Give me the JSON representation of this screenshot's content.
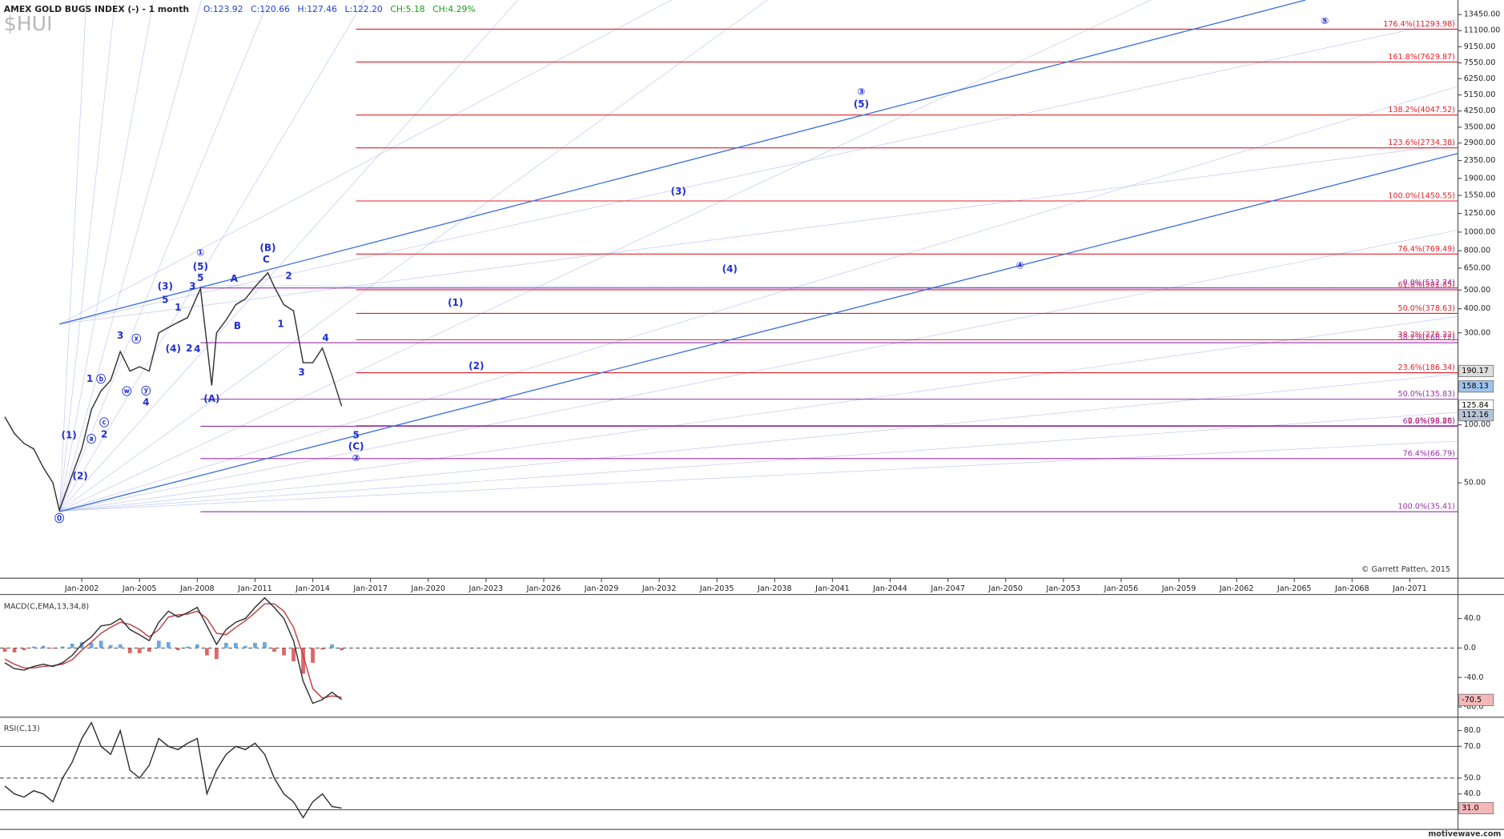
{
  "chart_data": [
    {
      "type": "line",
      "title": "AMEX GOLD BUGS INDEX (-) - 1 month",
      "symbol": "$HUI",
      "stats": [
        {
          "text": "O:123.92",
          "color": "#2040d0"
        },
        {
          "text": "C:120.66",
          "color": "#2040d0"
        },
        {
          "text": "H:127.46",
          "color": "#2040d0"
        },
        {
          "text": "L:122.20",
          "color": "#2040d0"
        },
        {
          "text": "CH:5.18",
          "color": "#18a018"
        },
        {
          "text": "CH:4.29%",
          "color": "#18a018"
        }
      ],
      "log_scale": true,
      "xlim": [
        "1997-10",
        "2073-07"
      ],
      "ylim": [
        16,
        16000
      ],
      "xticks": [
        {
          "value": "2002-01",
          "label": "Jan-2002"
        },
        {
          "value": "2005-01",
          "label": "Jan-2005"
        },
        {
          "value": "2008-01",
          "label": "Jan-2008"
        },
        {
          "value": "2011-01",
          "label": "Jan-2011"
        },
        {
          "value": "2014-01",
          "label": "Jan-2014"
        },
        {
          "value": "2017-01",
          "label": "Jan-2017"
        },
        {
          "value": "2020-01",
          "label": "Jan-2020"
        },
        {
          "value": "2023-01",
          "label": "Jan-2023"
        },
        {
          "value": "2026-01",
          "label": "Jan-2026"
        },
        {
          "value": "2029-01",
          "label": "Jan-2029"
        },
        {
          "value": "2032-01",
          "label": "Jan-2032"
        },
        {
          "value": "2035-01",
          "label": "Jan-2035"
        },
        {
          "value": "2038-01",
          "label": "Jan-2038"
        },
        {
          "value": "2041-01",
          "label": "Jan-2041"
        },
        {
          "value": "2044-01",
          "label": "Jan-2044"
        },
        {
          "value": "2047-01",
          "label": "Jan-2047"
        },
        {
          "value": "2050-01",
          "label": "Jan-2050"
        },
        {
          "value": "2053-01",
          "label": "Jan-2053"
        },
        {
          "value": "2056-01",
          "label": "Jan-2056"
        },
        {
          "value": "2059-01",
          "label": "Jan-2059"
        },
        {
          "value": "2062-01",
          "label": "Jan-2062"
        },
        {
          "value": "2065-01",
          "label": "Jan-2065"
        },
        {
          "value": "2068-01",
          "label": "Jan-2068"
        },
        {
          "value": "2071-01",
          "label": "Jan-2071"
        }
      ],
      "yticks": [
        {
          "value": 13450,
          "label": "13450.00"
        },
        {
          "value": 11100,
          "label": "11100.00"
        },
        {
          "value": 9150,
          "label": "9150.00"
        },
        {
          "value": 7550,
          "label": "7550.00"
        },
        {
          "value": 6250,
          "label": "6250.00"
        },
        {
          "value": 5150,
          "label": "5150.00"
        },
        {
          "value": 4250,
          "label": "4250.00"
        },
        {
          "value": 3500,
          "label": "3500.00"
        },
        {
          "value": 2900,
          "label": "2900.00"
        },
        {
          "value": 2350,
          "label": "2350.00"
        },
        {
          "value": 1900,
          "label": "1900.00"
        },
        {
          "value": 1550,
          "label": "1550.00"
        },
        {
          "value": 1250,
          "label": "1250.00"
        },
        {
          "value": 1000,
          "label": "1000.00"
        },
        {
          "value": 800,
          "label": "800.00"
        },
        {
          "value": 650,
          "label": "650.00"
        },
        {
          "value": 500,
          "label": "500.00"
        },
        {
          "value": 400,
          "label": "400.00"
        },
        {
          "value": 300,
          "label": "300.00"
        },
        {
          "value": 100,
          "label": "100.00"
        },
        {
          "value": 50,
          "label": "50.00"
        }
      ],
      "x": [
        "1998-01",
        "1998-07",
        "1999-01",
        "1999-07",
        "2000-01",
        "2000-07",
        "2000-11",
        "2001-07",
        "2002-01",
        "2002-07",
        "2003-01",
        "2003-07",
        "2004-01",
        "2004-07",
        "2005-01",
        "2005-07",
        "2006-01",
        "2006-07",
        "2007-01",
        "2007-07",
        "2008-03",
        "2008-10",
        "2009-01",
        "2009-07",
        "2010-01",
        "2010-07",
        "2011-01",
        "2011-09",
        "2012-01",
        "2012-07",
        "2013-01",
        "2013-07",
        "2014-01",
        "2014-07",
        "2015-01",
        "2015-07"
      ],
      "series": [
        {
          "color": "#333333",
          "values": [
            110,
            90,
            80,
            75,
            60,
            50,
            36,
            55,
            75,
            120,
            150,
            170,
            240,
            190,
            200,
            190,
            300,
            320,
            340,
            360,
            510,
            160,
            300,
            350,
            420,
            450,
            520,
            615,
            520,
            420,
            390,
            210,
            210,
            250,
            180,
            125
          ]
        }
      ],
      "markers": [
        {
          "value": 190.17,
          "fill": "#dddddd",
          "text_color": "#000000"
        },
        {
          "value": 158.13,
          "fill": "#9fc3ec",
          "text_color": "#000000"
        },
        {
          "value": 125.84,
          "fill": "#ffffff",
          "text_color": "#000000"
        },
        {
          "value": 112.16,
          "fill": "#b8c4d8",
          "text_color": "#000000"
        }
      ],
      "fib_levels": [
        {
          "label": "176.4%(11293.98)",
          "value": 11293.98,
          "start": "2016-04",
          "color": "#e0202a"
        },
        {
          "label": "161.8%(7629.87)",
          "value": 7629.87,
          "start": "2016-04",
          "color": "#e0202a"
        },
        {
          "label": "138.2%(4047.52)",
          "value": 4047.52,
          "start": "2016-04",
          "color": "#e0202a"
        },
        {
          "label": "123.6%(2734.38)",
          "value": 2734.38,
          "start": "2016-04",
          "color": "#e0202a"
        },
        {
          "label": "100.0%(1450.55)",
          "value": 1450.55,
          "start": "2016-04",
          "color": "#e0202a"
        },
        {
          "label": "76.4%(769.49)",
          "value": 769.49,
          "start": "2016-04",
          "color": "#e0202a"
        },
        {
          "label": "61.8%(501.85)",
          "value": 501.85,
          "start": "2016-04",
          "color": "#e0202a"
        },
        {
          "label": "50.0%(378.63)",
          "value": 378.63,
          "start": "2016-04",
          "color": "#e0202a"
        },
        {
          "label": "38.2%(276.22)",
          "value": 276.22,
          "start": "2016-04",
          "color": "#e0202a"
        },
        {
          "label": "23.6%(186.34)",
          "value": 186.34,
          "start": "2016-04",
          "color": "#e0202a"
        },
        {
          "label": "0.0%(98.88)",
          "value": 98.88,
          "start": "2016-04",
          "color": "#e0202a"
        },
        {
          "label": "0.0%(512.74)",
          "value": 512.74,
          "start": "2008-03",
          "color": "#9a2fa8"
        },
        {
          "label": "38.2%(266.72)",
          "value": 266.72,
          "start": "2008-03",
          "color": "#9a2fa8"
        },
        {
          "label": "50.0%(135.83)",
          "value": 135.83,
          "start": "2008-03",
          "color": "#9a2fa8"
        },
        {
          "label": "61.8%(98.26)",
          "value": 98.26,
          "start": "2008-03",
          "color": "#9a2fa8"
        },
        {
          "label": "76.4%(66.79)",
          "value": 66.79,
          "start": "2008-03",
          "color": "#9a2fa8"
        },
        {
          "label": "100.0%(35.41)",
          "value": 35.41,
          "start": "2008-03",
          "color": "#9a2fa8"
        }
      ],
      "trendlines": [
        {
          "x": [
            "2000-11",
            "2065-08"
          ],
          "values": [
            333,
            16000
          ],
          "color": "#3a6ee0"
        },
        {
          "x": [
            "2000-11",
            "2073-07"
          ],
          "values": [
            35.41,
            2560
          ],
          "color": "#3a6ee0"
        }
      ],
      "annotations": [
        {
          "text": "⓪",
          "x": "2000-11",
          "y": 32.5
        },
        {
          "text": "(1)",
          "x": "2001-05",
          "y": 88
        },
        {
          "text": "(2)",
          "x": "2001-12",
          "y": 53.9
        },
        {
          "text": "ⓐ",
          "x": "2002-07",
          "y": 84
        },
        {
          "text": "1",
          "x": "2002-06",
          "y": 173
        },
        {
          "text": "ⓑ",
          "x": "2003-01",
          "y": 172
        },
        {
          "text": "ⓒ",
          "x": "2003-03",
          "y": 102
        },
        {
          "text": "2",
          "x": "2003-03",
          "y": 89
        },
        {
          "text": "3",
          "x": "2004-01",
          "y": 290
        },
        {
          "text": "ⓦ",
          "x": "2004-05",
          "y": 148
        },
        {
          "text": "ⓧ",
          "x": "2004-11",
          "y": 277
        },
        {
          "text": "ⓨ",
          "x": "2005-05",
          "y": 149
        },
        {
          "text": "4",
          "x": "2005-05",
          "y": 130
        },
        {
          "text": "5",
          "x": "2006-05",
          "y": 443
        },
        {
          "text": "(3)",
          "x": "2006-05",
          "y": 520
        },
        {
          "text": "1",
          "x": "2007-01",
          "y": 404
        },
        {
          "text": "(4)",
          "x": "2006-10",
          "y": 247
        },
        {
          "text": "2",
          "x": "2007-08",
          "y": 248
        },
        {
          "text": "3",
          "x": "2007-10",
          "y": 520
        },
        {
          "text": "4",
          "x": "2008-01",
          "y": 246
        },
        {
          "text": "①",
          "x": "2008-03",
          "y": 779
        },
        {
          "text": "(5)",
          "x": "2008-03",
          "y": 660
        },
        {
          "text": "5",
          "x": "2008-03",
          "y": 577
        },
        {
          "text": "(A)",
          "x": "2008-10",
          "y": 136
        },
        {
          "text": "A",
          "x": "2009-12",
          "y": 570
        },
        {
          "text": "B",
          "x": "2010-02",
          "y": 325
        },
        {
          "text": "(B)",
          "x": "2011-09",
          "y": 825
        },
        {
          "text": "C",
          "x": "2011-08",
          "y": 718
        },
        {
          "text": "2",
          "x": "2012-10",
          "y": 590
        },
        {
          "text": "1",
          "x": "2012-05",
          "y": 333
        },
        {
          "text": "4",
          "x": "2014-09",
          "y": 281
        },
        {
          "text": "3",
          "x": "2013-06",
          "y": 186
        },
        {
          "text": "5",
          "x": "2016-04",
          "y": 88
        },
        {
          "text": "(C)",
          "x": "2016-04",
          "y": 77
        },
        {
          "text": "②",
          "x": "2016-04",
          "y": 67
        },
        {
          "text": "(1)",
          "x": "2021-06",
          "y": 429
        },
        {
          "text": "(2)",
          "x": "2022-07",
          "y": 201
        },
        {
          "text": "(3)",
          "x": "2033-01",
          "y": 1620
        },
        {
          "text": "(4)",
          "x": "2035-09",
          "y": 640
        },
        {
          "text": "③",
          "x": "2042-07",
          "y": 5330
        },
        {
          "text": "(5)",
          "x": "2042-07",
          "y": 4600
        },
        {
          "text": "④",
          "x": "2050-10",
          "y": 669
        },
        {
          "text": "⑤",
          "x": "2066-08",
          "y": 12400
        }
      ],
      "annotation_color": "#1f2fd0",
      "credit": "© Garrett Patten, 2015"
    },
    {
      "type": "line",
      "title": "MACD(C,EMA,13,34,8)",
      "xlim": [
        "1997-10",
        "2073-07"
      ],
      "ylim": [
        -90,
        70
      ],
      "yticks": [
        {
          "value": 40,
          "label": "40.0"
        },
        {
          "value": 0,
          "label": "0.0"
        },
        {
          "value": -40,
          "label": "-40.0"
        },
        {
          "value": -80,
          "label": "-80.0"
        }
      ],
      "levels": [
        {
          "value": 0,
          "style": "dashed"
        }
      ],
      "x": [
        "1998-01",
        "1998-07",
        "1999-01",
        "1999-07",
        "2000-01",
        "2000-07",
        "2001-01",
        "2001-07",
        "2002-01",
        "2002-07",
        "2003-01",
        "2003-07",
        "2004-01",
        "2004-07",
        "2005-01",
        "2005-07",
        "2006-01",
        "2006-07",
        "2007-01",
        "2007-07",
        "2008-01",
        "2008-07",
        "2009-01",
        "2009-07",
        "2010-01",
        "2010-07",
        "2011-01",
        "2011-07",
        "2012-01",
        "2012-07",
        "2013-01",
        "2013-07",
        "2014-01",
        "2014-07",
        "2015-01",
        "2015-07"
      ],
      "series": [
        {
          "color": "#c04040",
          "values": [
            -15,
            -22,
            -27,
            -27,
            -25,
            -24,
            -22,
            -16,
            -3,
            8,
            20,
            28,
            35,
            32,
            25,
            15,
            25,
            42,
            45,
            46,
            50,
            40,
            20,
            18,
            28,
            37,
            48,
            60,
            60,
            50,
            28,
            -10,
            -55,
            -68,
            -65,
            -67
          ]
        },
        {
          "color": "#303030",
          "values": [
            -20,
            -28,
            -30,
            -25,
            -22,
            -25,
            -20,
            -10,
            5,
            15,
            30,
            32,
            40,
            25,
            18,
            10,
            35,
            50,
            42,
            48,
            55,
            30,
            5,
            25,
            35,
            40,
            55,
            68,
            55,
            40,
            10,
            -45,
            -75,
            -70,
            -60,
            -70
          ]
        }
      ],
      "histogram": {
        "up_color": "#6fa8dc",
        "down_color": "#e06666",
        "values": [
          -5,
          -6,
          -3,
          2,
          3,
          -1,
          2,
          6,
          8,
          7,
          10,
          4,
          5,
          -7,
          -7,
          -5,
          10,
          8,
          -3,
          2,
          5,
          -10,
          -15,
          7,
          7,
          3,
          7,
          8,
          -5,
          -10,
          -18,
          -35,
          -20,
          -2,
          5,
          -3
        ]
      },
      "markers": [
        {
          "value": -70.5,
          "fill": "#f4b8b8",
          "text_color": "#000000"
        }
      ]
    },
    {
      "type": "line",
      "title": "RSI(C,13)",
      "xlim": [
        "1997-10",
        "2073-07"
      ],
      "ylim": [
        19.4,
        86
      ],
      "yticks": [
        {
          "value": 80,
          "label": "80.0"
        },
        {
          "value": 70,
          "label": "70.0"
        },
        {
          "value": 50,
          "label": "50.0"
        },
        {
          "value": 40,
          "label": "40.0"
        }
      ],
      "levels": [
        {
          "value": 70,
          "style": "solid"
        },
        {
          "value": 50,
          "style": "dashed"
        },
        {
          "value": 30,
          "style": "solid"
        }
      ],
      "x": [
        "1998-01",
        "1998-07",
        "1999-01",
        "1999-07",
        "2000-01",
        "2000-07",
        "2001-01",
        "2001-07",
        "2002-01",
        "2002-07",
        "2003-01",
        "2003-07",
        "2004-01",
        "2004-07",
        "2005-01",
        "2005-07",
        "2006-01",
        "2006-07",
        "2007-01",
        "2007-07",
        "2008-01",
        "2008-07",
        "2009-01",
        "2009-07",
        "2010-01",
        "2010-07",
        "2011-01",
        "2011-07",
        "2012-01",
        "2012-07",
        "2013-01",
        "2013-07",
        "2014-01",
        "2014-07",
        "2015-01",
        "2015-07"
      ],
      "series": [
        {
          "color": "#303030",
          "values": [
            45,
            40,
            38,
            42,
            40,
            35,
            50,
            60,
            75,
            85,
            70,
            65,
            80,
            55,
            50,
            58,
            75,
            70,
            68,
            72,
            75,
            40,
            55,
            65,
            70,
            68,
            72,
            65,
            50,
            40,
            35,
            25,
            35,
            40,
            32,
            31
          ]
        }
      ],
      "markers": [
        {
          "value": 31,
          "label": "31.0",
          "fill": "#f4b8b8",
          "text_color": "#000000"
        }
      ],
      "watermark": "motivewave.com"
    }
  ]
}
